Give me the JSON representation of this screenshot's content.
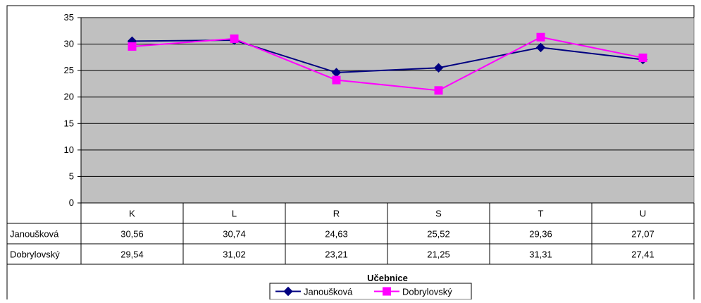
{
  "chart_data": {
    "type": "line",
    "title": "",
    "xlabel": "Učebnice",
    "ylabel": "",
    "categories": [
      "K",
      "L",
      "R",
      "S",
      "T",
      "U"
    ],
    "ylim": [
      0,
      35
    ],
    "yticks": [
      "0",
      "5",
      "10",
      "15",
      "20",
      "25",
      "30",
      "35"
    ],
    "grid": true,
    "legend": "bottom",
    "series": [
      {
        "name": "Janoušková",
        "values": [
          30.56,
          30.74,
          24.63,
          25.52,
          29.36,
          27.07
        ],
        "labels": [
          "30,56",
          "30,74",
          "24,63",
          "25,52",
          "29,36",
          "27,07"
        ],
        "color": "#000080",
        "marker": "diamond"
      },
      {
        "name": "Dobrylovský",
        "values": [
          29.54,
          31.02,
          23.21,
          21.25,
          31.31,
          27.41
        ],
        "labels": [
          "29,54",
          "31,02",
          "23,21",
          "21,25",
          "31,31",
          "27,41"
        ],
        "color": "#ff00ff",
        "marker": "square"
      }
    ],
    "plot_background": "#c0c0c0"
  }
}
